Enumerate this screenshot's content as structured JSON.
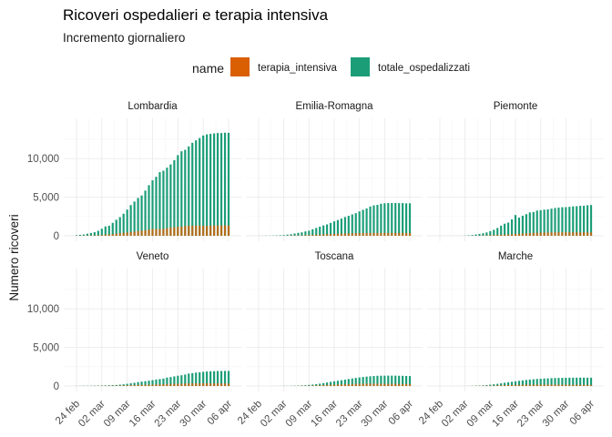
{
  "chart_data": {
    "type": "bar",
    "title": "Ricoveri ospedalieri e terapia intensiva",
    "subtitle": "Incremento giornaliero",
    "ylabel": "Numero ricoveri",
    "xlabel": "",
    "legend_title": "name",
    "legend_position": "top",
    "grid": true,
    "ylim": [
      0,
      14500
    ],
    "y_ticks": [
      0,
      5000,
      10000
    ],
    "y_tick_labels": [
      "0",
      "5,000",
      "10,000"
    ],
    "x_tick_labels": [
      "24 feb",
      "02 mar",
      "09 mar",
      "16 mar",
      "23 mar",
      "30 mar",
      "06 apr"
    ],
    "x_tick_day_index": [
      0,
      7,
      14,
      21,
      28,
      35,
      42
    ],
    "dates_first": "2020-02-24",
    "dates_last": "2020-04-06",
    "series": [
      {
        "name": "terapia_intensiva",
        "color": "#D95F02"
      },
      {
        "name": "totale_ospedalizzati",
        "color": "#1B9E77"
      }
    ],
    "panels": [
      {
        "name": "Lombardia",
        "totale_ospedalizzati": [
          76,
          125,
          167,
          272,
          367,
          465,
          645,
          911,
          1206,
          1305,
          1676,
          2077,
          2417,
          2856,
          3396,
          3978,
          4435,
          4898,
          5225,
          5853,
          6559,
          7188,
          7637,
          8238,
          8433,
          8824,
          9241,
          9796,
          10444,
          10945,
          11137,
          11578,
          12044,
          12366,
          12661,
          12985,
          13136,
          13201,
          13257,
          13308,
          13303,
          13347,
          13333
        ],
        "terapia_intensiva": [
          19,
          25,
          32,
          45,
          56,
          57,
          68,
          105,
          154,
          199,
          224,
          279,
          342,
          389,
          440,
          485,
          553,
          615,
          670,
          721,
          823,
          879,
          877,
          882,
          906,
          994,
          1066,
          1125,
          1155,
          1184,
          1265,
          1317,
          1314,
          1319,
          1316,
          1305,
          1284,
          1292,
          1338,
          1334,
          1337,
          1348,
          1340
        ]
      },
      {
        "name": "Emilia-Romagna",
        "totale_ospedalizzati": [
          10,
          11,
          19,
          19,
          31,
          45,
          68,
          90,
          151,
          200,
          290,
          385,
          450,
          566,
          661,
          852,
          1018,
          1183,
          1344,
          1474,
          1669,
          1875,
          2046,
          2233,
          2434,
          2585,
          2771,
          2934,
          3164,
          3367,
          3542,
          3798,
          3939,
          4005,
          4152,
          4212,
          4239,
          4243,
          4249,
          4231,
          4236,
          4203,
          4208
        ],
        "terapia_intensiva": [
          0,
          2,
          2,
          3,
          4,
          8,
          11,
          16,
          24,
          28,
          36,
          49,
          60,
          74,
          98,
          123,
          142,
          168,
          193,
          209,
          227,
          251,
          275,
          281,
          296,
          318,
          330,
          340,
          352,
          358,
          362,
          365,
          367,
          369,
          372,
          373,
          370,
          372,
          375,
          366,
          363,
          363,
          364
        ]
      },
      {
        "name": "Piemonte",
        "totale_ospedalizzati": [
          0,
          2,
          2,
          2,
          5,
          8,
          10,
          27,
          63,
          95,
          174,
          245,
          328,
          431,
          601,
          779,
          1014,
          1313,
          1567,
          1710,
          2127,
          2688,
          2354,
          2601,
          2802,
          3026,
          3086,
          3265,
          3321,
          3384,
          3427,
          3515,
          3601,
          3649,
          3701,
          3713,
          3752,
          3810,
          3835,
          3884,
          3899,
          3952,
          3985
        ],
        "terapia_intensiva": [
          0,
          0,
          0,
          0,
          0,
          0,
          0,
          4,
          7,
          9,
          17,
          27,
          41,
          54,
          75,
          92,
          109,
          136,
          153,
          174,
          209,
          240,
          263,
          283,
          314,
          352,
          375,
          400,
          420,
          426,
          437,
          448,
          453,
          459,
          461,
          455,
          453,
          452,
          448,
          452,
          452,
          442,
          432
        ]
      },
      {
        "name": "Veneto",
        "totale_ospedalizzati": [
          15,
          18,
          23,
          25,
          33,
          44,
          58,
          67,
          85,
          99,
          115,
          133,
          175,
          221,
          283,
          353,
          420,
          507,
          566,
          625,
          692,
          766,
          840,
          898,
          960,
          1093,
          1159,
          1248,
          1331,
          1396,
          1487,
          1614,
          1673,
          1739,
          1781,
          1834,
          1877,
          1912,
          1919,
          1948,
          1948,
          1956,
          1956
        ],
        "terapia_intensiva": [
          7,
          9,
          10,
          12,
          12,
          14,
          17,
          23,
          26,
          32,
          39,
          46,
          59,
          72,
          89,
          106,
          121,
          140,
          149,
          166,
          179,
          192,
          203,
          220,
          236,
          256,
          265,
          283,
          292,
          306,
          319,
          334,
          340,
          348,
          349,
          356,
          353,
          346,
          344,
          339,
          327,
          325,
          313
        ]
      },
      {
        "name": "Toscana",
        "totale_ospedalizzati": [
          0,
          0,
          0,
          0,
          2,
          5,
          10,
          17,
          18,
          22,
          36,
          52,
          78,
          101,
          145,
          184,
          239,
          304,
          376,
          455,
          534,
          618,
          682,
          752,
          821,
          906,
          981,
          1047,
          1112,
          1169,
          1220,
          1258,
          1295,
          1321,
          1332,
          1336,
          1342,
          1343,
          1336,
          1324,
          1320,
          1304,
          1290
        ],
        "terapia_intensiva": [
          0,
          0,
          0,
          0,
          0,
          1,
          3,
          5,
          6,
          9,
          12,
          17,
          23,
          31,
          42,
          55,
          72,
          92,
          115,
          138,
          160,
          180,
          198,
          214,
          230,
          246,
          258,
          270,
          282,
          292,
          296,
          298,
          297,
          296,
          290,
          284,
          280,
          276,
          271,
          268,
          262,
          254,
          248
        ]
      },
      {
        "name": "Marche",
        "totale_ospedalizzati": [
          0,
          0,
          0,
          0,
          1,
          1,
          2,
          5,
          12,
          23,
          39,
          57,
          82,
          119,
          166,
          224,
          278,
          346,
          418,
          484,
          545,
          615,
          673,
          725,
          781,
          830,
          875,
          912,
          945,
          971,
          990,
          1016,
          1031,
          1045,
          1054,
          1066,
          1073,
          1073,
          1080,
          1089,
          1078,
          1076,
          1072
        ],
        "terapia_intensiva": [
          0,
          0,
          0,
          0,
          0,
          0,
          1,
          2,
          5,
          9,
          14,
          20,
          27,
          37,
          50,
          64,
          77,
          93,
          107,
          120,
          133,
          145,
          155,
          164,
          171,
          177,
          181,
          185,
          187,
          186,
          185,
          183,
          181,
          178,
          176,
          172,
          169,
          165,
          163,
          158,
          152,
          146,
          141
        ]
      }
    ]
  }
}
